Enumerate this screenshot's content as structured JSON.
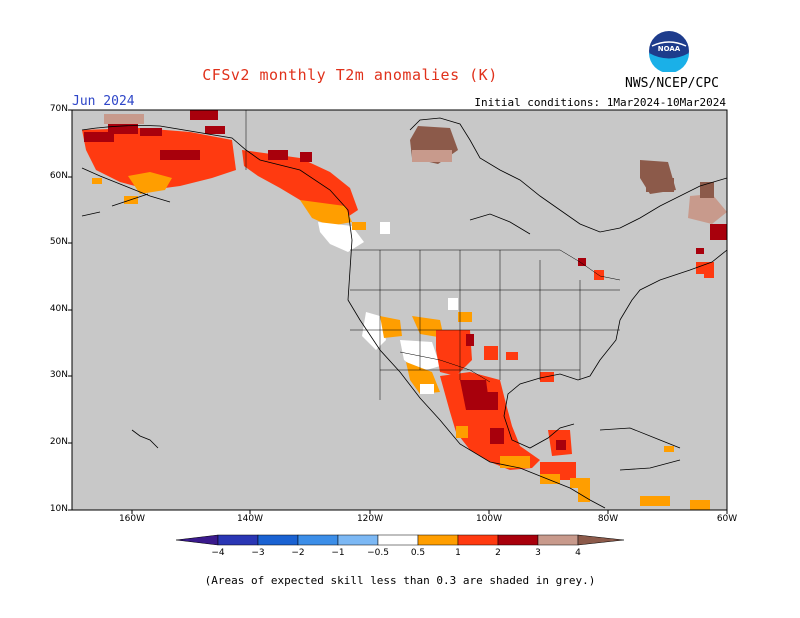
{
  "header": {
    "title": "CFSv2 monthly T2m anomalies (K)",
    "month": "Jun 2024",
    "initial_conditions": "Initial conditions:  1Mar2024-10Mar2024",
    "agency": "NWS/NCEP/CPC",
    "logo_text": "NOAA"
  },
  "map": {
    "lat_ticks": [
      {
        "label": "70N",
        "lat": 70
      },
      {
        "label": "60N",
        "lat": 60
      },
      {
        "label": "50N",
        "lat": 50
      },
      {
        "label": "40N",
        "lat": 40
      },
      {
        "label": "30N",
        "lat": 30
      },
      {
        "label": "20N",
        "lat": 20
      },
      {
        "label": "10N",
        "lat": 10
      }
    ],
    "lon_ticks": [
      {
        "label": "160W",
        "lon": -160
      },
      {
        "label": "140W",
        "lon": -140
      },
      {
        "label": "120W",
        "lon": -120
      },
      {
        "label": "100W",
        "lon": -100
      },
      {
        "label": "80W",
        "lon": -80
      },
      {
        "label": "60W",
        "lon": -60
      }
    ],
    "colors": {
      "ocean_grey": "#c8c8c8",
      "neutral": "#ffffff",
      "coast": "#000000"
    }
  },
  "colorbar": {
    "labels": [
      "−4",
      "−3",
      "−2",
      "−1",
      "−0.5",
      "0.5",
      "1",
      "2",
      "3",
      "4"
    ],
    "colors": {
      "lt_-4": "#3a1a8c",
      "-4_-3": "#2a36b4",
      "-3_-2": "#1a62d2",
      "-2_-1": "#3c8ee8",
      "-1_-0.5": "#7cb8f4",
      "0.5_1": "#ff9e00",
      "1_2": "#ff3a10",
      "2_3": "#a8000c",
      "3_4": "#c89a8c",
      "gt_4": "#8c5a4a"
    }
  },
  "footnote": "(Areas of expected skill less than 0.3 are shaded in grey.)"
}
